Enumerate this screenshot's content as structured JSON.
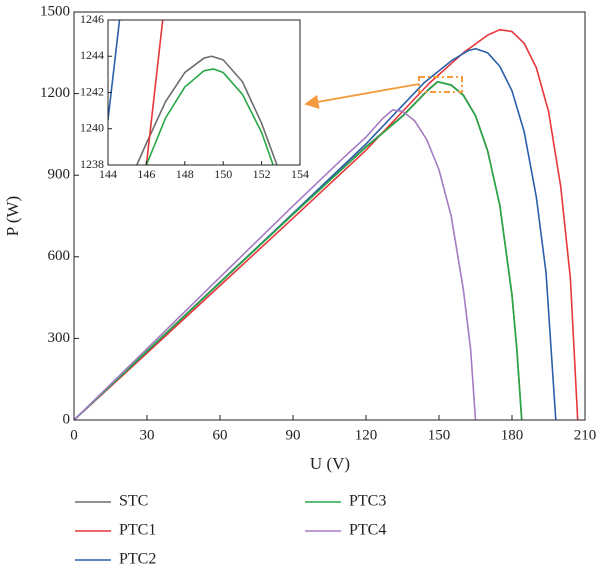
{
  "chart_data": [
    {
      "type": "line",
      "xlabel": "U (V)",
      "ylabel": "P (W)",
      "xlim": [
        0,
        210
      ],
      "ylim": [
        0,
        1500
      ],
      "xticks": [
        0,
        30,
        60,
        90,
        120,
        150,
        180,
        210
      ],
      "yticks": [
        0,
        300,
        600,
        900,
        1200,
        1500
      ],
      "legend": "bottom",
      "series": [
        {
          "name": "STC",
          "color": "#6d6d6d",
          "x": [
            0,
            30,
            60,
            90,
            120,
            135,
            145,
            149.4,
            155,
            160,
            165,
            170,
            175,
            180,
            182,
            184
          ],
          "values": [
            0,
            254,
            507,
            758,
            1005,
            1118,
            1210,
            1244,
            1232,
            1195,
            1120,
            990,
            790,
            460,
            260,
            0
          ]
        },
        {
          "name": "PTC1",
          "color": "#e8363b",
          "x": [
            0,
            30,
            60,
            90,
            120,
            146,
            160,
            170,
            175,
            180,
            185,
            190,
            195,
            200,
            204,
            207
          ],
          "values": [
            0,
            246,
            494,
            742,
            992,
            1238,
            1350,
            1415,
            1435,
            1428,
            1385,
            1295,
            1135,
            860,
            520,
            0
          ]
        },
        {
          "name": "PTC2",
          "color": "#2a5faa",
          "x": [
            0,
            30,
            60,
            90,
            120,
            144,
            155,
            162,
            165,
            170,
            175,
            180,
            185,
            190,
            194,
            198
          ],
          "values": [
            0,
            252,
            505,
            760,
            1015,
            1241,
            1320,
            1358,
            1365,
            1350,
            1300,
            1210,
            1060,
            820,
            540,
            0
          ]
        },
        {
          "name": "PTC3",
          "color": "#27a844",
          "x": [
            0,
            30,
            60,
            90,
            120,
            135,
            145,
            149.5,
            155,
            160,
            165,
            170,
            175,
            180,
            182,
            184
          ],
          "values": [
            0,
            253,
            505,
            756,
            1003,
            1116,
            1208,
            1243.3,
            1231,
            1193,
            1118,
            988,
            788,
            458,
            258,
            0
          ]
        },
        {
          "name": "PTC4",
          "color": "#a57bc4",
          "x": [
            0,
            30,
            60,
            90,
            110,
            120,
            127,
            131,
            135,
            140,
            145,
            150,
            155,
            160,
            163,
            165
          ],
          "values": [
            0,
            262,
            525,
            787,
            958,
            1040,
            1110,
            1140,
            1135,
            1100,
            1030,
            920,
            750,
            480,
            260,
            0
          ]
        }
      ]
    },
    {
      "type": "line",
      "xlim": [
        144,
        154
      ],
      "ylim": [
        1238,
        1246
      ],
      "xticks": [
        144,
        146,
        148,
        150,
        152,
        154
      ],
      "yticks": [
        1238,
        1240,
        1242,
        1244,
        1246
      ],
      "series": [
        {
          "color": "#6d6d6d",
          "x": [
            145.5,
            146,
            147,
            148,
            149,
            149.4,
            150,
            151,
            152,
            152.8
          ],
          "values": [
            1238,
            1239.2,
            1241.5,
            1243.1,
            1243.9,
            1244,
            1243.8,
            1242.6,
            1240.3,
            1238
          ]
        },
        {
          "color": "#e8363b",
          "x": [
            146,
            146.85
          ],
          "values": [
            1238,
            1246
          ]
        },
        {
          "color": "#2a5faa",
          "x": [
            144,
            144.6
          ],
          "values": [
            1240.5,
            1246
          ]
        },
        {
          "color": "#27a844",
          "x": [
            146,
            147,
            148,
            149,
            149.5,
            150,
            151,
            152,
            152.6
          ],
          "values": [
            1238,
            1240.6,
            1242.3,
            1243.2,
            1243.3,
            1243.1,
            1241.9,
            1239.8,
            1238
          ]
        }
      ]
    }
  ]
}
